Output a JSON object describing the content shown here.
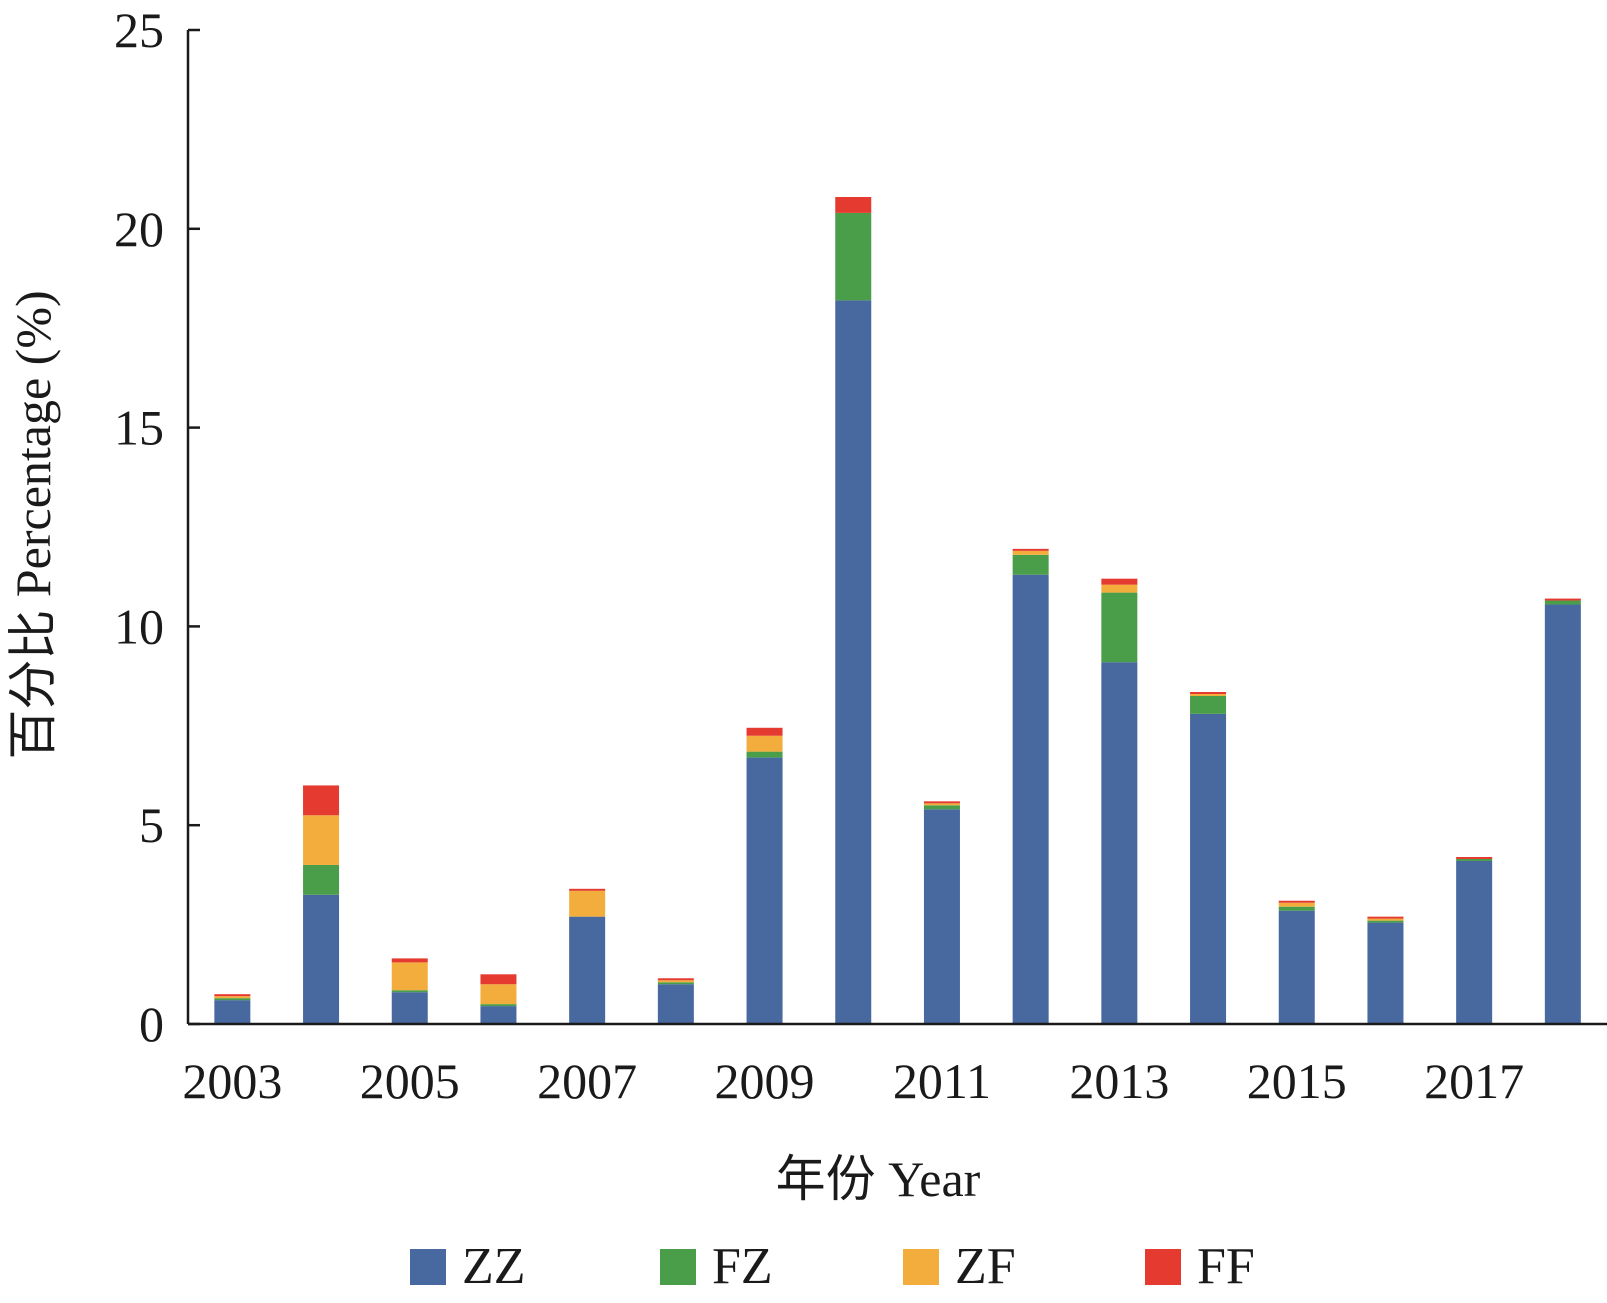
{
  "chart_data": {
    "type": "bar",
    "stacked": true,
    "xlabel": "年份  Year",
    "ylabel": "百分比  Percentage (%)",
    "ylim": [
      0,
      25
    ],
    "yticks": [
      "0",
      "5",
      "10",
      "15",
      "20",
      "25"
    ],
    "categories": [
      "2003",
      "2004",
      "2005",
      "2006",
      "2007",
      "2008",
      "2009",
      "2010",
      "2011",
      "2012",
      "2013",
      "2014",
      "2015",
      "2016",
      "2017",
      "2018"
    ],
    "xtick_labels": [
      "2003",
      "",
      "2005",
      "",
      "2007",
      "",
      "2009",
      "",
      "2011",
      "",
      "2013",
      "",
      "2015",
      "",
      "2017",
      ""
    ],
    "grid": false,
    "legend_position": "bottom",
    "series": [
      {
        "name": "ZZ",
        "color": "#4868a0",
        "values": [
          0.6,
          3.25,
          0.8,
          0.45,
          2.7,
          1.0,
          6.7,
          18.2,
          5.4,
          11.3,
          9.1,
          7.8,
          2.85,
          2.55,
          4.1,
          10.55
        ]
      },
      {
        "name": "FZ",
        "color": "#4a9e4a",
        "values": [
          0.05,
          0.75,
          0.05,
          0.05,
          0.0,
          0.05,
          0.15,
          2.2,
          0.1,
          0.5,
          1.75,
          0.45,
          0.1,
          0.05,
          0.05,
          0.1
        ]
      },
      {
        "name": "ZF",
        "color": "#f2ad3c",
        "values": [
          0.05,
          1.25,
          0.7,
          0.5,
          0.65,
          0.05,
          0.4,
          0.0,
          0.05,
          0.1,
          0.2,
          0.05,
          0.1,
          0.05,
          0.0,
          0.0
        ]
      },
      {
        "name": "FF",
        "color": "#e53a2f",
        "values": [
          0.05,
          0.75,
          0.1,
          0.25,
          0.05,
          0.05,
          0.2,
          0.4,
          0.05,
          0.05,
          0.15,
          0.05,
          0.05,
          0.05,
          0.05,
          0.05
        ]
      }
    ]
  }
}
